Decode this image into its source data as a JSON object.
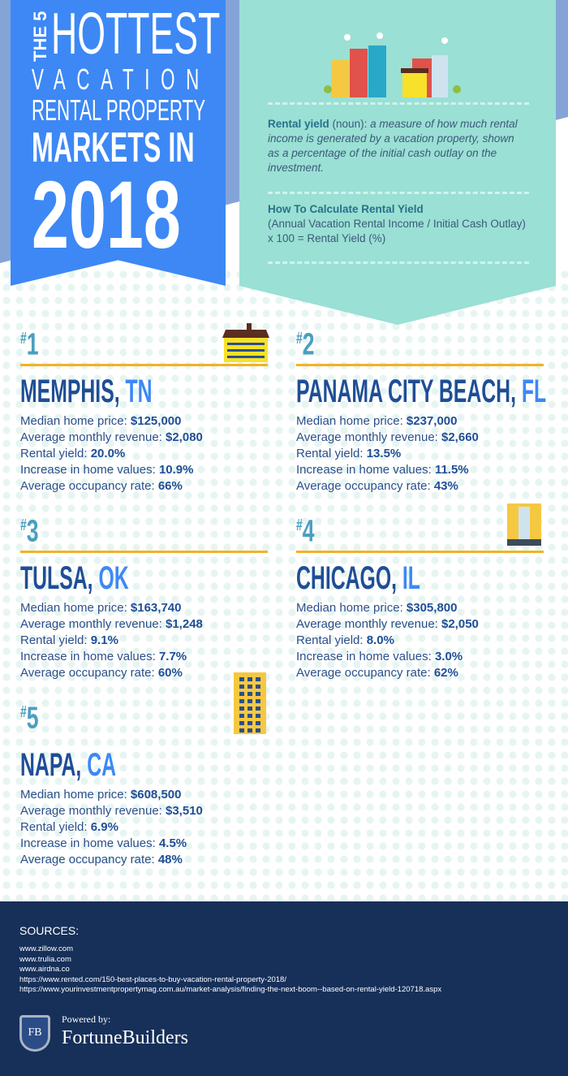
{
  "title": {
    "the5": "THE 5",
    "line1": "HOTTEST",
    "line2": "VACATION",
    "line3": "RENTAL PROPERTY",
    "line4": "MARKETS IN",
    "year": "2018"
  },
  "definition": {
    "term": "Rental yield",
    "pos": "(noun):",
    "text": "a measure of how much rental income is generated by a vacation property, shown as a percentage of the initial cash outlay on the investment.",
    "calc_heading": "How To Calculate Rental Yield",
    "calc_formula": "(Annual Vacation Rental Income / Initial Cash Outlay) x 100 = Rental Yield (%)"
  },
  "labels": {
    "median": "Median home price: ",
    "revenue": "Average monthly revenue: ",
    "yield": "Rental yield: ",
    "increase": "Increase in home values: ",
    "occupancy": "Average occupancy rate: "
  },
  "markets": [
    {
      "rank": "1",
      "city": "MEMPHIS,",
      "state": "TN",
      "median": "$125,000",
      "revenue": "$2,080",
      "yield": "20.0%",
      "increase": "10.9%",
      "occupancy": "66%"
    },
    {
      "rank": "2",
      "city": "PANAMA CITY BEACH,",
      "state": "FL",
      "median": "$237,000",
      "revenue": "$2,660",
      "yield": "13.5%",
      "increase": "11.5%",
      "occupancy": "43%"
    },
    {
      "rank": "3",
      "city": "TULSA,",
      "state": "OK",
      "median": "$163,740",
      "revenue": "$1,248",
      "yield": "9.1%",
      "increase": "7.7%",
      "occupancy": "60%"
    },
    {
      "rank": "4",
      "city": "CHICAGO,",
      "state": "IL",
      "median": "$305,800",
      "revenue": "$2,050",
      "yield": "8.0%",
      "increase": "3.0%",
      "occupancy": "62%"
    },
    {
      "rank": "5",
      "city": "NAPA,",
      "state": "CA",
      "median": "$608,500",
      "revenue": "$3,510",
      "yield": "6.9%",
      "increase": "4.5%",
      "occupancy": "48%"
    }
  ],
  "sources": {
    "heading": "SOURCES:",
    "links": [
      "www.zillow.com",
      "www.trulia.com",
      "www.airdna.co",
      "https://www.rented.com/150-best-places-to-buy-vacation-rental-property-2018/",
      "https://www.yourinvestmentpropertymag.com.au/market-analysis/finding-the-next-boom--based-on-rental-yield-120718.aspx"
    ]
  },
  "branding": {
    "powered_by": "Powered by:",
    "name": "FortuneBuilders",
    "logo_text": "FB"
  },
  "colors": {
    "banner_blue": "#3d88f5",
    "teal": "#9ae0d4",
    "navy": "#1f4e96",
    "gold": "#f0b323",
    "footer": "#16305a"
  }
}
